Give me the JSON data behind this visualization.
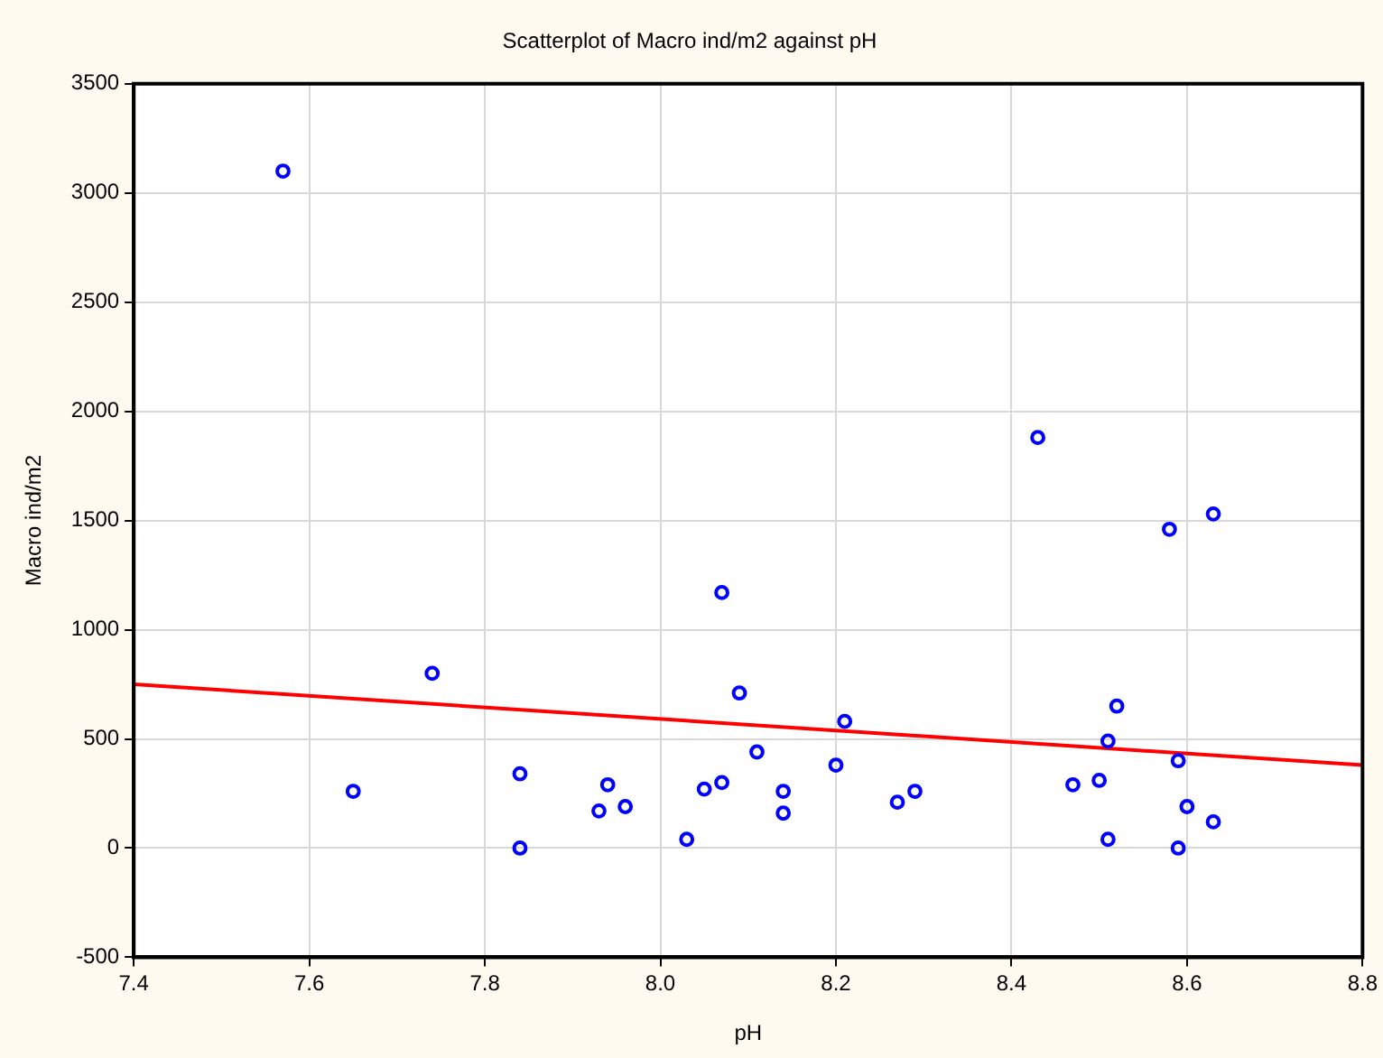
{
  "chart_data": {
    "type": "scatter",
    "title": "Scatterplot of Macro ind/m2 against pH",
    "xlabel": "pH",
    "ylabel": "Macro ind/m2",
    "xlim": [
      7.4,
      8.8
    ],
    "xticks": [
      {
        "value": 7.4,
        "label": "7.4"
      },
      {
        "value": 7.6,
        "label": "7.6"
      },
      {
        "value": 7.8,
        "label": "7.8"
      },
      {
        "value": 8.0,
        "label": "8.0"
      },
      {
        "value": 8.2,
        "label": "8.2"
      },
      {
        "value": 8.4,
        "label": "8.4"
      },
      {
        "value": 8.6,
        "label": "8.6"
      },
      {
        "value": 8.8,
        "label": "8.8"
      }
    ],
    "ylim": [
      -500,
      3500
    ],
    "yticks": [
      -500,
      0,
      500,
      1000,
      1500,
      2000,
      2500,
      3000,
      3500
    ],
    "grid": true,
    "legend": false,
    "series": [
      {
        "marker": "circle",
        "color": "#0000ff",
        "x": [
          7.57,
          7.65,
          7.74,
          7.84,
          7.84,
          7.93,
          7.94,
          7.96,
          8.03,
          8.05,
          8.07,
          8.07,
          8.09,
          8.11,
          8.14,
          8.14,
          8.2,
          8.21,
          8.27,
          8.29,
          8.43,
          8.47,
          8.5,
          8.51,
          8.51,
          8.52,
          8.58,
          8.59,
          8.59,
          8.6,
          8.63,
          8.63
        ],
        "values": [
          3100,
          260,
          800,
          340,
          0,
          170,
          290,
          190,
          40,
          270,
          300,
          1170,
          710,
          440,
          260,
          160,
          380,
          580,
          210,
          260,
          1880,
          290,
          310,
          490,
          40,
          650,
          1460,
          400,
          0,
          190,
          1530,
          120
        ]
      },
      {
        "type": "line",
        "marker": "none",
        "color": "#ff0000",
        "x": [
          7.4,
          8.8
        ],
        "values": [
          750,
          380
        ]
      }
    ]
  }
}
